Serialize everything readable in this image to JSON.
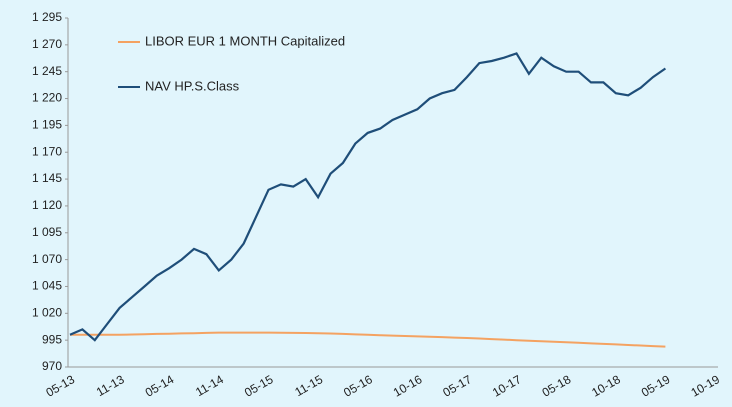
{
  "chart_data": {
    "type": "line",
    "categories": [
      "05-13",
      null,
      null,
      null,
      "11-13",
      null,
      null,
      null,
      "05-14",
      null,
      null,
      null,
      "11-14",
      null,
      null,
      null,
      "05-15",
      null,
      null,
      null,
      "11-15",
      null,
      null,
      null,
      "05-16",
      null,
      null,
      null,
      "10-16",
      null,
      null,
      null,
      "05-17",
      null,
      null,
      null,
      "10-17",
      null,
      null,
      null,
      "05-18",
      null,
      null,
      null,
      "10-18",
      null,
      null,
      null,
      "05-19",
      null,
      null,
      null,
      "10-19"
    ],
    "series": [
      {
        "name": "LIBOR EUR 1 MONTH Capitalized",
        "color": "#f4a261",
        "values": [
          1000,
          1000,
          1000,
          1000,
          1000,
          1000.3,
          1000.5,
          1000.8,
          1001,
          1001.3,
          1001.5,
          1001.8,
          1002,
          1002,
          1002,
          1002,
          1002,
          1001.9,
          1001.8,
          1001.7,
          1001.5,
          1001.2,
          1000.8,
          1000.4,
          1000,
          999.6,
          999.2,
          998.9,
          998.5,
          998.1,
          997.8,
          997.4,
          997,
          996.5,
          996,
          995.5,
          995,
          994.5,
          994,
          993.5,
          993,
          992.5,
          992,
          991.5,
          991,
          990.5,
          990,
          989.5,
          989,
          null,
          null,
          null,
          null
        ]
      },
      {
        "name": "NAV HP.S.Class",
        "color": "#1f4e79",
        "values": [
          1000,
          1005,
          995,
          1010,
          1025,
          1035,
          1045,
          1055,
          1062,
          1070,
          1080,
          1075,
          1060,
          1070,
          1085,
          1110,
          1135,
          1140,
          1138,
          1145,
          1128,
          1150,
          1160,
          1178,
          1188,
          1192,
          1200,
          1205,
          1210,
          1220,
          1225,
          1228,
          1240,
          1253,
          1255,
          1258,
          1262,
          1243,
          1258,
          1250,
          1245,
          1245,
          1235,
          1235,
          1225,
          1223,
          1230,
          1240,
          1248,
          null,
          null,
          null,
          null
        ]
      }
    ],
    "ylim": [
      970,
      1295
    ],
    "yticks": [
      970,
      995,
      {
        "value": 1020,
        "label": "1 020"
      },
      {
        "value": 1045,
        "label": "1 045"
      },
      {
        "value": 1070,
        "label": "1 070"
      },
      {
        "value": 1095,
        "label": "1 095"
      },
      {
        "value": 1120,
        "label": "1 120"
      },
      {
        "value": 1145,
        "label": "1 145"
      },
      {
        "value": 1170,
        "label": "1 170"
      },
      {
        "value": 1195,
        "label": "1 195"
      },
      {
        "value": 1220,
        "label": "1 220"
      },
      {
        "value": 1245,
        "label": "1 245"
      },
      {
        "value": 1270,
        "label": "1 270"
      },
      {
        "value": 1295,
        "label": "1 295"
      }
    ],
    "grid": false
  }
}
